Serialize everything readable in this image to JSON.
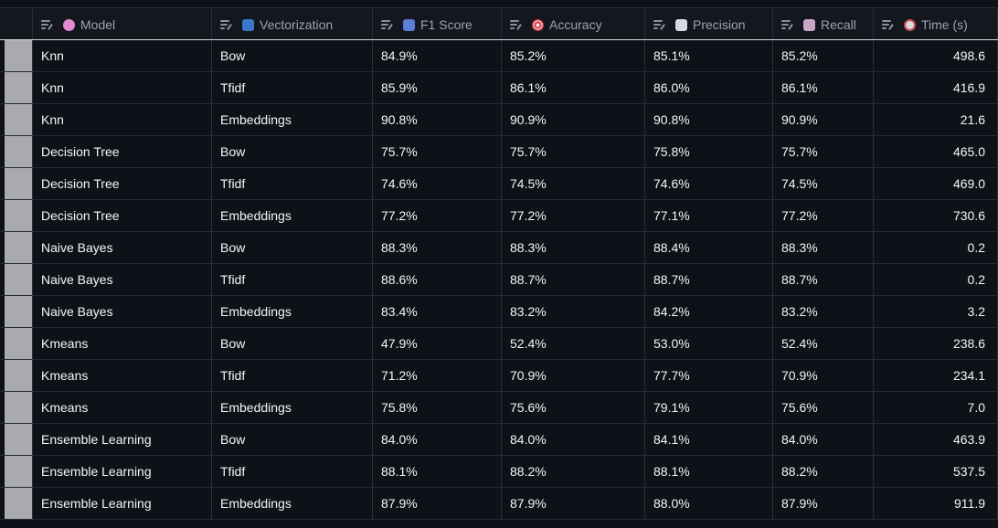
{
  "columns": [
    {
      "label": "Model",
      "icon": "brain-icon"
    },
    {
      "label": "Vectorization",
      "icon": "chart-bars-icon"
    },
    {
      "label": "F1 Score",
      "icon": "bar-chart-icon"
    },
    {
      "label": "Accuracy",
      "icon": "target-icon"
    },
    {
      "label": "Precision",
      "icon": "chart-increasing-icon"
    },
    {
      "label": "Recall",
      "icon": "chart-decreasing-icon"
    },
    {
      "label": "Time (s)",
      "icon": "stopwatch-icon"
    }
  ],
  "rows": [
    [
      "Knn",
      "Bow",
      "84.9%",
      "85.2%",
      "85.1%",
      "85.2%",
      "498.6"
    ],
    [
      "Knn",
      "Tfidf",
      "85.9%",
      "86.1%",
      "86.0%",
      "86.1%",
      "416.9"
    ],
    [
      "Knn",
      "Embeddings",
      "90.8%",
      "90.9%",
      "90.8%",
      "90.9%",
      "21.6"
    ],
    [
      "Decision Tree",
      "Bow",
      "75.7%",
      "75.7%",
      "75.8%",
      "75.7%",
      "465.0"
    ],
    [
      "Decision Tree",
      "Tfidf",
      "74.6%",
      "74.5%",
      "74.6%",
      "74.5%",
      "469.0"
    ],
    [
      "Decision Tree",
      "Embeddings",
      "77.2%",
      "77.2%",
      "77.1%",
      "77.2%",
      "730.6"
    ],
    [
      "Naive Bayes",
      "Bow",
      "88.3%",
      "88.3%",
      "88.4%",
      "88.3%",
      "0.2"
    ],
    [
      "Naive Bayes",
      "Tfidf",
      "88.6%",
      "88.7%",
      "88.7%",
      "88.7%",
      "0.2"
    ],
    [
      "Naive Bayes",
      "Embeddings",
      "83.4%",
      "83.2%",
      "84.2%",
      "83.2%",
      "3.2"
    ],
    [
      "Kmeans",
      "Bow",
      "47.9%",
      "52.4%",
      "53.0%",
      "52.4%",
      "238.6"
    ],
    [
      "Kmeans",
      "Tfidf",
      "71.2%",
      "70.9%",
      "77.7%",
      "70.9%",
      "234.1"
    ],
    [
      "Kmeans",
      "Embeddings",
      "75.8%",
      "75.6%",
      "79.1%",
      "75.6%",
      "7.0"
    ],
    [
      "Ensemble Learning",
      "Bow",
      "84.0%",
      "84.0%",
      "84.1%",
      "84.0%",
      "463.9"
    ],
    [
      "Ensemble Learning",
      "Tfidf",
      "88.1%",
      "88.2%",
      "88.1%",
      "88.2%",
      "537.5"
    ],
    [
      "Ensemble Learning",
      "Embeddings",
      "87.9%",
      "87.9%",
      "88.0%",
      "87.9%",
      "911.9"
    ]
  ]
}
